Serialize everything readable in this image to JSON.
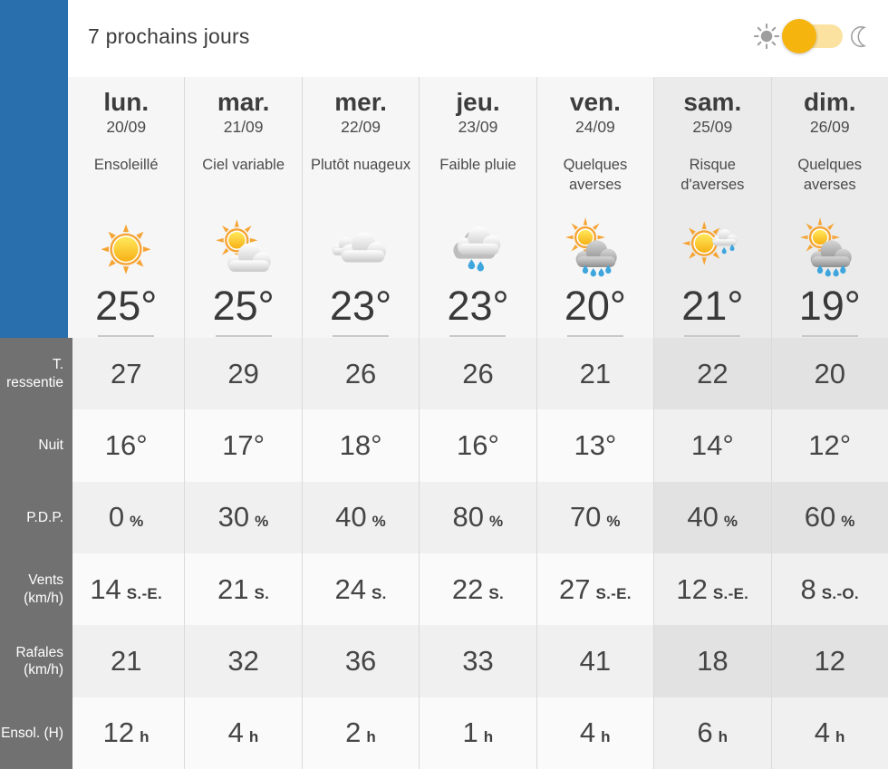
{
  "header": {
    "title": "7 prochains jours"
  },
  "toggle": {
    "state": "day",
    "sun_icon": "sun-icon",
    "moon_icon": "moon-icon",
    "knob_color": "#f6b40e",
    "track_color": "#fbe2a0",
    "icon_gray": "#9e9e9e"
  },
  "row_labels": {
    "feels": "T.\nressentie",
    "night": "Nuit",
    "pop": "P.D.P.",
    "wind": "Vents\n(km/h)",
    "gusts": "Rafales\n(km/h)",
    "sun": "Ensol. (H)"
  },
  "units": {
    "pop": "%",
    "sun_hours": "h"
  },
  "days": [
    {
      "name": "lun.",
      "date": "20/09",
      "condition": "Ensoleillé",
      "icon": "sun",
      "temp": "25°",
      "feels": "27",
      "night": "16°",
      "pop": "0",
      "wind": "14",
      "wind_dir": "S.-E.",
      "gusts": "21",
      "sun_hours": "12",
      "weekend": false
    },
    {
      "name": "mar.",
      "date": "21/09",
      "condition": "Ciel variable",
      "icon": "sun-cloud",
      "temp": "25°",
      "feels": "29",
      "night": "17°",
      "pop": "30",
      "wind": "21",
      "wind_dir": "S.",
      "gusts": "32",
      "sun_hours": "4",
      "weekend": false
    },
    {
      "name": "mer.",
      "date": "22/09",
      "condition": "Plutôt nuageux",
      "icon": "cloud",
      "temp": "23°",
      "feels": "26",
      "night": "18°",
      "pop": "40",
      "wind": "24",
      "wind_dir": "S.",
      "gusts": "36",
      "sun_hours": "2",
      "weekend": false
    },
    {
      "name": "jeu.",
      "date": "23/09",
      "condition": "Faible pluie",
      "icon": "rain-cloud",
      "temp": "23°",
      "feels": "26",
      "night": "16°",
      "pop": "80",
      "wind": "22",
      "wind_dir": "S.",
      "gusts": "33",
      "sun_hours": "1",
      "weekend": false
    },
    {
      "name": "ven.",
      "date": "24/09",
      "condition": "Quelques averses",
      "icon": "sun-rain",
      "temp": "20°",
      "feels": "21",
      "night": "13°",
      "pop": "70",
      "wind": "27",
      "wind_dir": "S.-E.",
      "gusts": "41",
      "sun_hours": "4",
      "weekend": false
    },
    {
      "name": "sam.",
      "date": "25/09",
      "condition": "Risque d'averses",
      "icon": "sun-light-rain",
      "temp": "21°",
      "feels": "22",
      "night": "14°",
      "pop": "40",
      "wind": "12",
      "wind_dir": "S.-E.",
      "gusts": "18",
      "sun_hours": "6",
      "weekend": true
    },
    {
      "name": "dim.",
      "date": "26/09",
      "condition": "Quelques averses",
      "icon": "sun-rain",
      "temp": "19°",
      "feels": "20",
      "night": "12°",
      "pop": "60",
      "wind": "8",
      "wind_dir": "S.-O.",
      "gusts": "12",
      "sun_hours": "4",
      "weekend": true
    }
  ],
  "colors": {
    "accent_blue": "#2a6fad",
    "sidebar_gray": "#717171",
    "column_divider": "#dadada",
    "weekday_bg": "#f6f6f6",
    "weekend_bg": "#ebebeb",
    "row_odd_bg": "#f0f0f0",
    "row_even_bg": "#fafafa",
    "drop_blue": "#3ea6dd",
    "sun_orange": "#f5a433"
  }
}
